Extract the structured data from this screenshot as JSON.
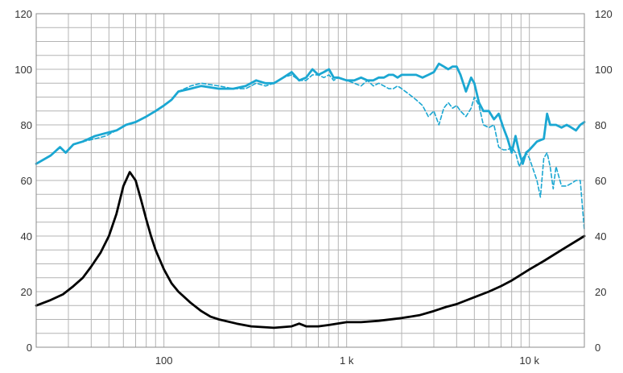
{
  "chart_data": {
    "type": "line",
    "title": "",
    "xlabel": "",
    "ylabel": "",
    "xscale": "log",
    "xlim": [
      20,
      20000
    ],
    "ylim": [
      0,
      120
    ],
    "grid": true,
    "legend": "none",
    "y_ticks": [
      "0",
      "20",
      "40",
      "60",
      "80",
      "100",
      "120"
    ],
    "x_ticks": [
      {
        "value": 100,
        "label": "100"
      },
      {
        "value": 1000,
        "label": "1 k"
      },
      {
        "value": 10000,
        "label": "10 k"
      }
    ],
    "colors": {
      "spl": "#1ba7d2",
      "impedance": "#000000",
      "grid": "#b4b4b4",
      "frame": "#8c8c8c"
    },
    "series": [
      {
        "style": "solid",
        "color": "#1ba7d2",
        "x": [
          20,
          24,
          27,
          29,
          32,
          36,
          42,
          48,
          55,
          62,
          70,
          80,
          90,
          100,
          110,
          120,
          140,
          160,
          200,
          240,
          280,
          320,
          360,
          400,
          450,
          500,
          550,
          600,
          650,
          700,
          750,
          800,
          850,
          900,
          1000,
          1100,
          1200,
          1300,
          1400,
          1500,
          1600,
          1700,
          1800,
          1900,
          2000,
          2200,
          2400,
          2600,
          2800,
          3000,
          3200,
          3400,
          3600,
          3800,
          4000,
          4200,
          4500,
          4800,
          5000,
          5300,
          5600,
          6000,
          6400,
          6800,
          7200,
          7600,
          8000,
          8400,
          8800,
          9200,
          9600,
          10000,
          11000,
          12000,
          12500,
          13000,
          14000,
          15000,
          16000,
          17000,
          18000,
          19000,
          20000
        ],
        "y": [
          66,
          69,
          72,
          70,
          73,
          74,
          76,
          77,
          78,
          80,
          81,
          83,
          85,
          87,
          89,
          92,
          93,
          94,
          93,
          93,
          94,
          96,
          95,
          95,
          97,
          99,
          96,
          97,
          100,
          98,
          99,
          100,
          97,
          97,
          96,
          96,
          97,
          96,
          96,
          97,
          97,
          98,
          98,
          97,
          98,
          98,
          98,
          97,
          98,
          99,
          102,
          101,
          100,
          101,
          101,
          98,
          92,
          97,
          95,
          88,
          85,
          85,
          82,
          84,
          79,
          75,
          70,
          76,
          70,
          66,
          70,
          71,
          74,
          75,
          84,
          80,
          80,
          79,
          80,
          79,
          78,
          80,
          81
        ]
      },
      {
        "style": "dashed",
        "color": "#1ba7d2",
        "x": [
          20,
          24,
          27,
          29,
          32,
          36,
          42,
          48,
          55,
          62,
          70,
          80,
          90,
          100,
          110,
          120,
          140,
          160,
          200,
          240,
          280,
          320,
          360,
          400,
          450,
          500,
          550,
          600,
          650,
          700,
          750,
          800,
          850,
          900,
          1000,
          1100,
          1200,
          1300,
          1400,
          1500,
          1600,
          1700,
          1800,
          1900,
          2000,
          2200,
          2400,
          2600,
          2800,
          3000,
          3200,
          3400,
          3600,
          3800,
          4000,
          4200,
          4500,
          4800,
          5000,
          5300,
          5600,
          6000,
          6400,
          6800,
          7200,
          7600,
          8000,
          8400,
          8800,
          9200,
          9600,
          10000,
          11000,
          11500,
          12000,
          12500,
          13000,
          13500,
          14000,
          15000,
          16000,
          17000,
          18000,
          19000,
          20000
        ],
        "y": [
          66,
          69,
          72,
          70,
          73,
          74,
          75,
          76,
          78,
          80,
          81,
          83,
          85,
          87,
          89,
          92,
          94,
          95,
          94,
          93,
          93,
          95,
          94,
          95,
          97,
          98,
          96,
          96,
          98,
          98,
          97,
          98,
          96,
          97,
          96,
          95,
          94,
          96,
          94,
          95,
          94,
          93,
          93,
          94,
          93,
          91,
          89,
          87,
          83,
          85,
          80,
          86,
          88,
          86,
          87,
          85,
          83,
          86,
          90,
          87,
          80,
          79,
          80,
          72,
          71,
          71,
          72,
          70,
          65,
          68,
          70,
          68,
          60,
          54,
          68,
          70,
          65,
          57,
          65,
          58,
          58,
          59,
          60,
          60,
          42
        ]
      },
      {
        "style": "solid",
        "color": "#000000",
        "x": [
          20,
          24,
          28,
          32,
          36,
          40,
          45,
          50,
          55,
          60,
          65,
          70,
          75,
          80,
          85,
          90,
          100,
          110,
          120,
          140,
          160,
          180,
          200,
          250,
          300,
          400,
          500,
          550,
          600,
          650,
          700,
          800,
          1000,
          1200,
          1500,
          2000,
          2500,
          3000,
          3500,
          4000,
          5000,
          6000,
          7000,
          8000,
          10000,
          12000,
          15000,
          20000
        ],
        "y": [
          15,
          17,
          19,
          22,
          25,
          29,
          34,
          40,
          48,
          58,
          63,
          60,
          53,
          46,
          40,
          35,
          28,
          23,
          20,
          16,
          13,
          11,
          10,
          8.5,
          7.5,
          7,
          7.5,
          8.5,
          7.5,
          7.5,
          7.5,
          8,
          9,
          9,
          9.5,
          10.5,
          11.5,
          13,
          14.5,
          15.5,
          18,
          20,
          22,
          24,
          28,
          31,
          35,
          40
        ]
      }
    ]
  }
}
